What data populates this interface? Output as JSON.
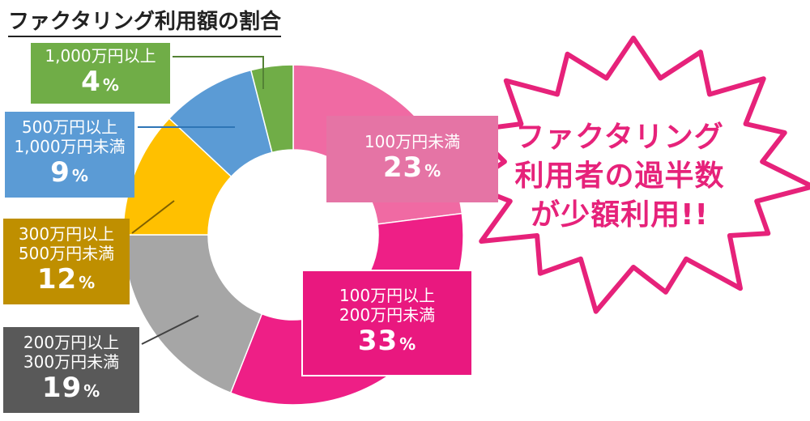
{
  "title": "ファクタリング利用額の割合",
  "callout": {
    "lines": [
      "ファクタリング",
      "利用者の過半数",
      "が少額利用!!"
    ]
  },
  "chart_data": {
    "type": "pie",
    "title": "ファクタリング利用額の割合",
    "slices": [
      {
        "label_lines": [
          "100万円未満"
        ],
        "value": 23,
        "display": "23",
        "color": "#f06aa3"
      },
      {
        "label_lines": [
          "100万円以上",
          "200万円未満"
        ],
        "value": 33,
        "display": "33",
        "color": "#ee1f86"
      },
      {
        "label_lines": [
          "200万円以上",
          "300万円未満"
        ],
        "value": 19,
        "display": "19",
        "color": "#a6a6a6"
      },
      {
        "label_lines": [
          "300万円以上",
          "500万円未満"
        ],
        "value": 12,
        "display": "12",
        "color": "#ffc000"
      },
      {
        "label_lines": [
          "500万円以上",
          "1,000万円未満"
        ],
        "value": 9,
        "display": "9",
        "color": "#5b9bd5"
      },
      {
        "label_lines": [
          "1,000万円以上"
        ],
        "value": 4,
        "display": "4",
        "color": "#70ad47"
      }
    ],
    "unit": "%",
    "label_colors": [
      "#e574a5",
      "#e9187f",
      "#595959",
      "#bf8f00",
      "#5b9bd5",
      "#70ad47"
    ]
  }
}
